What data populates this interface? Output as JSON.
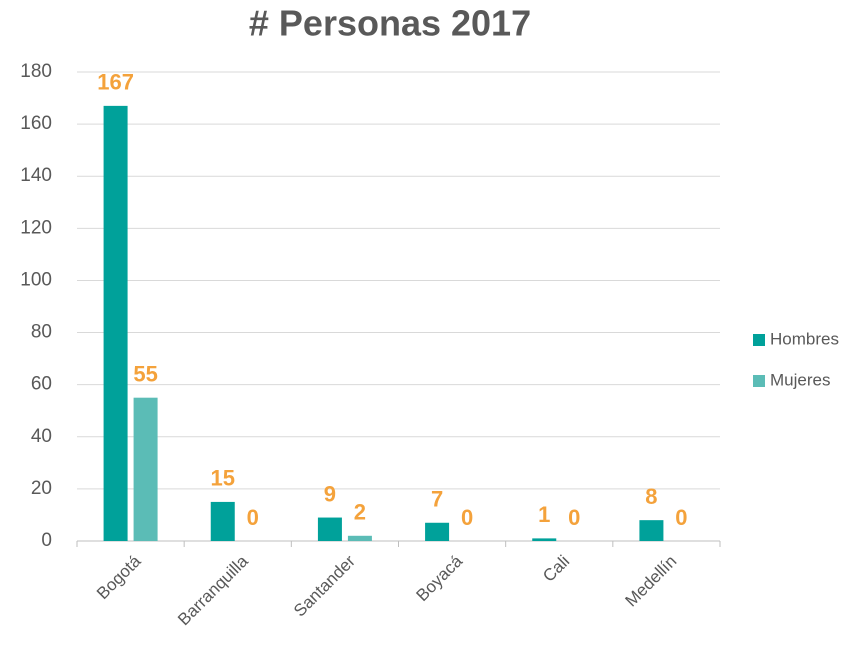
{
  "chart_data": {
    "type": "bar",
    "title": "# Personas 2017",
    "categories": [
      "Bogotá",
      "Barranquilla",
      "Santander",
      "Boyacá",
      "Cali",
      "Medellín"
    ],
    "series": [
      {
        "name": "Hombres",
        "color": "#00a19a",
        "values": [
          167,
          15,
          9,
          7,
          1,
          8
        ]
      },
      {
        "name": "Mujeres",
        "color": "#5bbcb6",
        "values": [
          55,
          0,
          2,
          0,
          0,
          0
        ]
      }
    ],
    "ylim": [
      0,
      180
    ],
    "yticks": [
      0,
      20,
      40,
      60,
      80,
      100,
      120,
      140,
      160,
      180
    ],
    "grid": true,
    "legend": "right",
    "label_color": "#f4a23b"
  }
}
